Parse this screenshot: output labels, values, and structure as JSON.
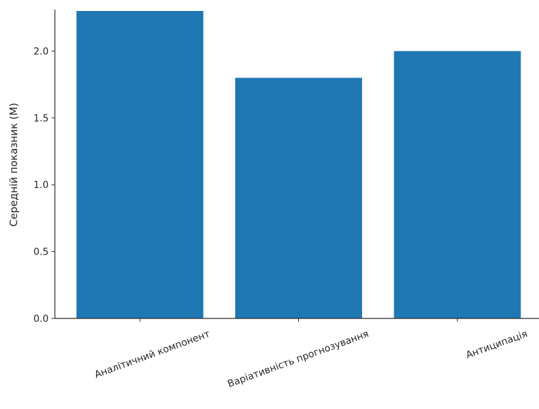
{
  "chart_data": {
    "type": "bar",
    "categories": [
      "Аналітичний компонент",
      "Варіативність прогнозування",
      "Антиципація"
    ],
    "values": [
      2.3,
      1.8,
      2.0
    ],
    "title": "",
    "xlabel": "",
    "ylabel": "Середній показник (М)",
    "ylim": [
      0,
      2.3
    ],
    "yticks": [
      "0.0",
      "0.5",
      "1.0",
      "1.5",
      "2.0"
    ],
    "grid": false,
    "bar_color": "#1f77b4",
    "axis_color": "#262626"
  }
}
